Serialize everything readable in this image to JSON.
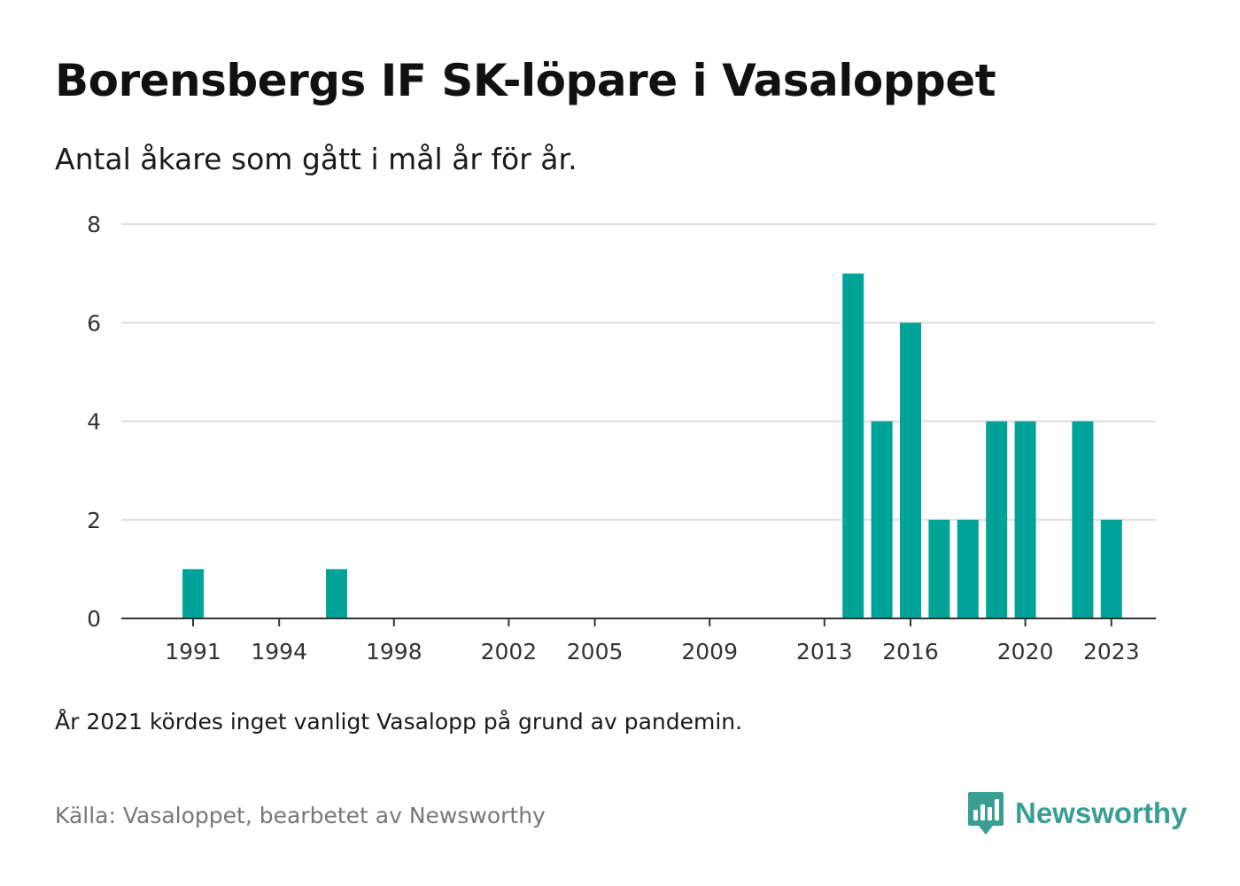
{
  "title": "Borensbergs IF SK-löpare i Vasaloppet",
  "subtitle": "Antal åkare som gått i mål år för år.",
  "note": "År 2021 kördes inget vanligt Vasalopp på grund av pandemin.",
  "source": "Källa: Vasaloppet, bearbetet av Newsworthy",
  "brand": {
    "name": "Newsworthy",
    "color": "#3a9e92",
    "icon": "newsworthy-logo-icon"
  },
  "colors": {
    "bar": "#00a398",
    "grid": "#dddddd",
    "axis": "#333333",
    "tick_text": "#333333"
  },
  "chart_data": {
    "type": "bar",
    "title": "Borensbergs IF SK-löpare i Vasaloppet",
    "subtitle": "Antal åkare som gått i mål år för år.",
    "xlabel": "",
    "ylabel": "",
    "x_range": [
      1989,
      2025
    ],
    "ylim": [
      0,
      8
    ],
    "yticks": [
      0,
      2,
      4,
      6,
      8
    ],
    "xticks": [
      1991,
      1994,
      1998,
      2002,
      2005,
      2009,
      2013,
      2016,
      2020,
      2023
    ],
    "grid": true,
    "legend": "none",
    "series": [
      {
        "x": [
          1991,
          1996,
          2014,
          2015,
          2016,
          2017,
          2018,
          2019,
          2020,
          2022,
          2023
        ],
        "values": [
          1,
          1,
          7,
          4,
          6,
          2,
          2,
          4,
          4,
          4,
          2
        ]
      }
    ]
  }
}
